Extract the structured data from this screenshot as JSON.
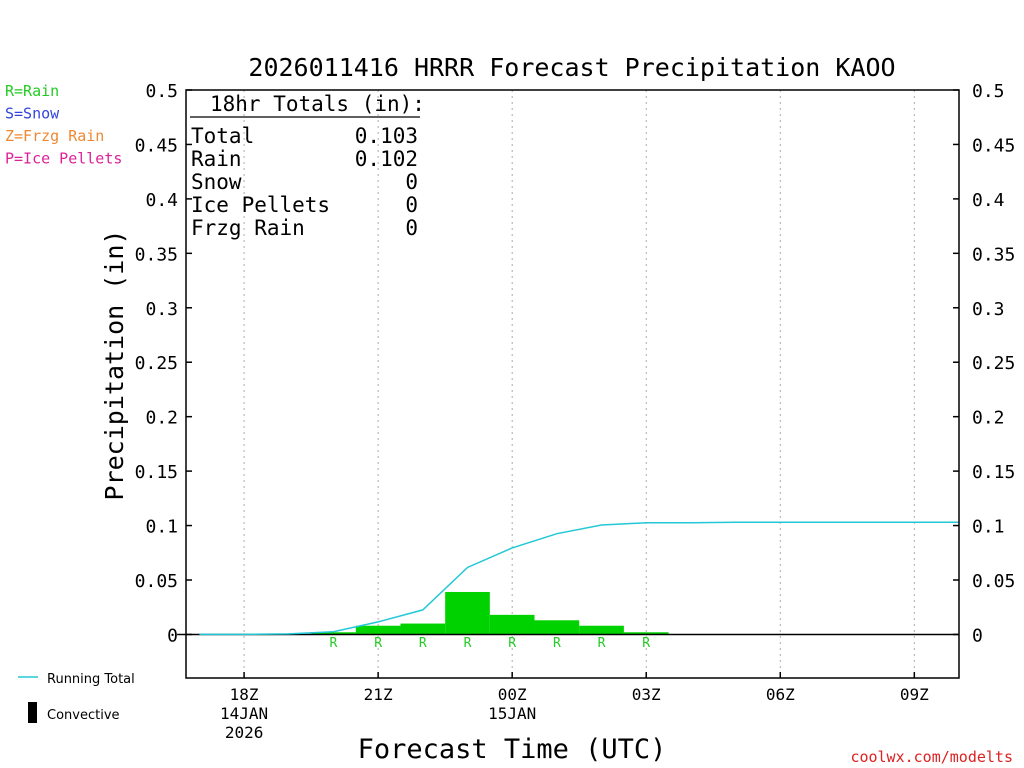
{
  "chart_data": {
    "type": "bar",
    "title": "2026011416 HRRR Forecast Precipitation KAOO",
    "xlabel": "Forecast Time (UTC)",
    "ylabel": "Precipitation (in)",
    "ylim": [
      -0.04,
      0.5
    ],
    "y_ticks": [
      0,
      0.05,
      0.1,
      0.15,
      0.2,
      0.25,
      0.3,
      0.35,
      0.4,
      0.45,
      0.5
    ],
    "y_tick_labels": [
      "0",
      "0.05",
      "0.1",
      "0.15",
      "0.2",
      "0.25",
      "0.3",
      "0.35",
      "0.4",
      "0.45",
      "0.5"
    ],
    "xlim_hours": [
      16.7,
      34.0
    ],
    "x_ticks": [
      {
        "hour": 18,
        "lines": [
          "18Z",
          "14JAN",
          "2026"
        ]
      },
      {
        "hour": 21,
        "lines": [
          "21Z"
        ]
      },
      {
        "hour": 24,
        "lines": [
          "00Z",
          "15JAN"
        ]
      },
      {
        "hour": 27,
        "lines": [
          "03Z"
        ]
      },
      {
        "hour": 30,
        "lines": [
          "06Z"
        ]
      },
      {
        "hour": 33,
        "lines": [
          "09Z"
        ]
      }
    ],
    "series": [
      {
        "name": "Rain",
        "kind": "hourly-bars",
        "hours": [
          17,
          18,
          19,
          20,
          21,
          22,
          23,
          24,
          25,
          26,
          27,
          28,
          29,
          30,
          31,
          32,
          33
        ],
        "values": [
          0,
          0,
          0,
          0.002,
          0.008,
          0.01,
          0.039,
          0.018,
          0.013,
          0.008,
          0.002,
          0,
          0,
          0,
          0,
          0,
          0
        ],
        "type_codes": [
          "",
          "",
          "",
          "R",
          "R",
          "R",
          "R",
          "R",
          "R",
          "R",
          "R",
          "",
          "",
          "",
          "",
          "",
          ""
        ]
      },
      {
        "name": "Running Total",
        "kind": "line",
        "hours": [
          17,
          18,
          19,
          20,
          21,
          22,
          23,
          24,
          25,
          26,
          27,
          28,
          29,
          30,
          31,
          32,
          33,
          34
        ],
        "values": [
          0,
          0,
          0.0005,
          0.0025,
          0.0115,
          0.0225,
          0.0615,
          0.0795,
          0.0925,
          0.1005,
          0.1025,
          0.1025,
          0.103,
          0.103,
          0.103,
          0.103,
          0.103,
          0.103
        ]
      },
      {
        "name": "Convective",
        "kind": "hourly-bars",
        "hours": [
          17,
          18,
          19,
          20,
          21,
          22,
          23,
          24,
          25,
          26,
          27,
          28,
          29,
          30,
          31,
          32,
          33
        ],
        "values": [
          0,
          0,
          0,
          0,
          0,
          0,
          0,
          0,
          0,
          0,
          0,
          0,
          0,
          0,
          0,
          0,
          0
        ]
      }
    ],
    "totals_box": {
      "heading": "18hr Totals (in):",
      "rows": [
        {
          "label": "Total",
          "value": "0.103"
        },
        {
          "label": "Rain",
          "value": "0.102"
        },
        {
          "label": "Snow",
          "value": "0"
        },
        {
          "label": "Ice Pellets",
          "value": "0"
        },
        {
          "label": "Frzg Rain",
          "value": "0"
        }
      ]
    },
    "type_key": [
      {
        "text": "R=Rain",
        "color": "#22cc22"
      },
      {
        "text": "S=Snow",
        "color": "#3344dd"
      },
      {
        "text": "Z=Frzg Rain",
        "color": "#ee8833"
      },
      {
        "text": "P=Ice Pellets",
        "color": "#dd2299"
      }
    ],
    "legend": [
      {
        "label": "Running Total",
        "color": "#22c8d6"
      },
      {
        "label": "Convective",
        "color": "#000000"
      }
    ],
    "grid": "dotted vertical at x ticks",
    "legend_position": "bottom-left",
    "colors": {
      "rain_bar": "#00d200",
      "running_total": "#22c8d6",
      "convective": "#000000",
      "grid": "#aaaaaa",
      "credit": "#dd2222"
    }
  },
  "credit": "coolwx.com/modelts"
}
